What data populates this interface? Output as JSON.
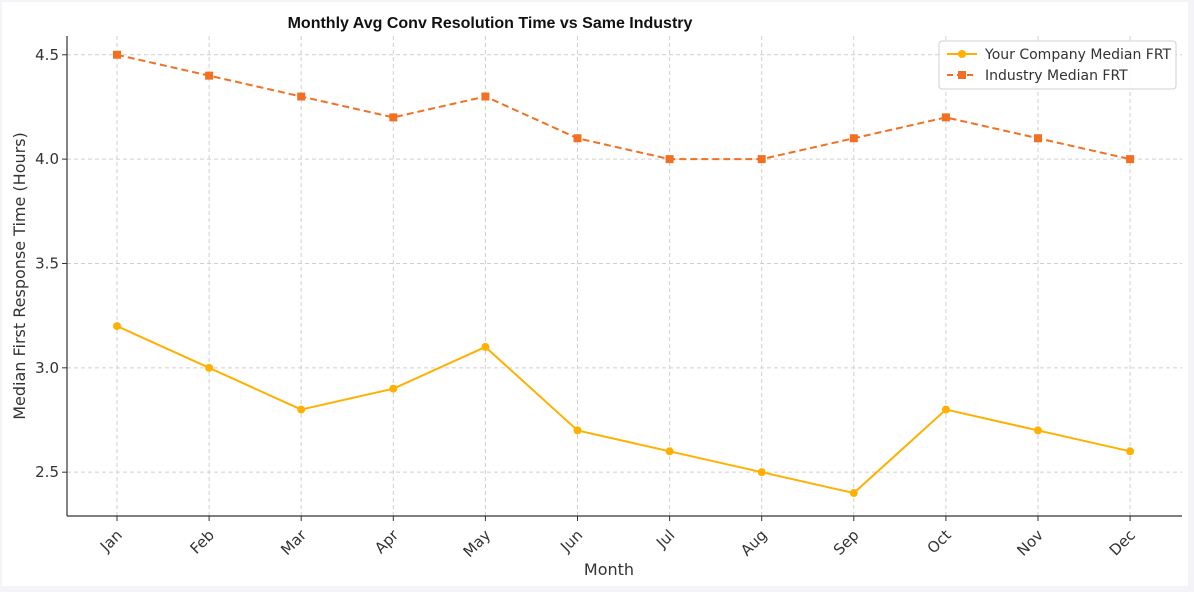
{
  "chart_data": {
    "type": "line",
    "title": "Monthly Avg Conv Resolution Time vs Same Industry",
    "xlabel": "Month",
    "ylabel": "Median First Response Time (Hours)",
    "categories": [
      "Jan",
      "Feb",
      "Mar",
      "Apr",
      "May",
      "Jun",
      "Jul",
      "Aug",
      "Sep",
      "Oct",
      "Nov",
      "Dec"
    ],
    "ylim": [
      2.29,
      4.59
    ],
    "yticks": [
      "2.5",
      "3.0",
      "3.5",
      "4.0",
      "4.5"
    ],
    "grid": true,
    "legend_position": "top-right",
    "series": [
      {
        "name": "Your Company Median FRT",
        "values": [
          3.2,
          3.0,
          2.8,
          2.9,
          3.1,
          2.7,
          2.6,
          2.5,
          2.4,
          2.8,
          2.7,
          2.6
        ],
        "color": "#ffb000",
        "marker": "circle",
        "line_style": "solid"
      },
      {
        "name": "Industry Median FRT",
        "values": [
          4.5,
          4.4,
          4.3,
          4.2,
          4.3,
          4.1,
          4.0,
          4.0,
          4.1,
          4.2,
          4.1,
          4.0
        ],
        "color": "#f36f21",
        "marker": "square",
        "line_style": "dashed"
      }
    ]
  }
}
